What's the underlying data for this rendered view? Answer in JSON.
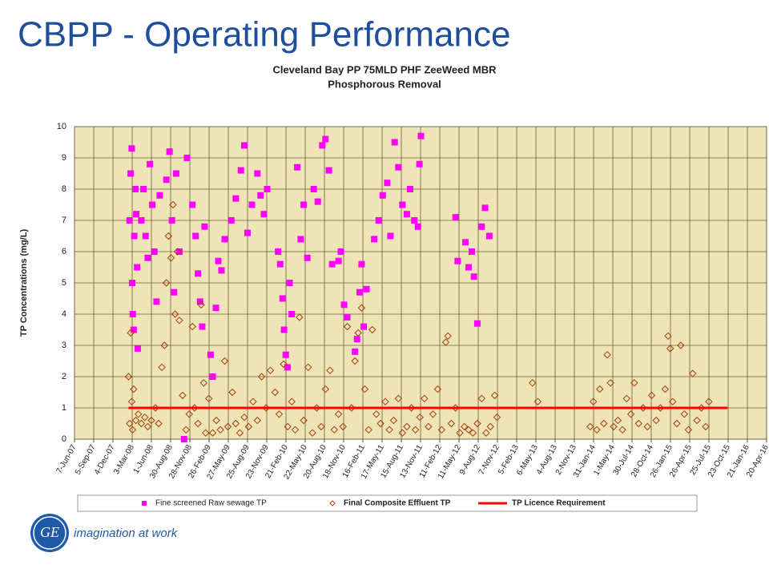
{
  "slide_title": "CBPP - Operating Performance",
  "logo": {
    "mark": "GE",
    "tagline": "imagination at work"
  },
  "chart_data": {
    "type": "scatter",
    "title": [
      "Cleveland Bay PP 75MLD PHF ZeeWeed MBR",
      "Phosphorous Removal"
    ],
    "y_label": "TP Concentrations (mg/L)",
    "ylim": [
      0,
      10
    ],
    "yticks": [
      0,
      1,
      2,
      3,
      4,
      5,
      6,
      7,
      8,
      9,
      10
    ],
    "xlim": [
      "2007-06-07",
      "2016-04-20"
    ],
    "xticks": [
      {
        "value": "2007-06-07",
        "label": "7-Jun-07"
      },
      {
        "value": "2007-09-05",
        "label": "5-Sep-07"
      },
      {
        "value": "2007-12-04",
        "label": "4-Dec-07"
      },
      {
        "value": "2008-03-03",
        "label": "3-Mar-08"
      },
      {
        "value": "2008-06-01",
        "label": "1-Jun-08"
      },
      {
        "value": "2008-08-30",
        "label": "30-Aug-08"
      },
      {
        "value": "2008-11-28",
        "label": "28-Nov-08"
      },
      {
        "value": "2009-02-26",
        "label": "26-Feb-09"
      },
      {
        "value": "2009-05-27",
        "label": "27-May-09"
      },
      {
        "value": "2009-08-25",
        "label": "25-Aug-09"
      },
      {
        "value": "2009-11-23",
        "label": "23-Nov-09"
      },
      {
        "value": "2010-02-21",
        "label": "21-Feb-10"
      },
      {
        "value": "2010-05-22",
        "label": "22-May-10"
      },
      {
        "value": "2010-08-20",
        "label": "20-Aug-10"
      },
      {
        "value": "2010-11-18",
        "label": "18-Nov-10"
      },
      {
        "value": "2011-02-16",
        "label": "16-Feb-11"
      },
      {
        "value": "2011-05-17",
        "label": "17-May-11"
      },
      {
        "value": "2011-08-15",
        "label": "15-Aug-11"
      },
      {
        "value": "2011-11-13",
        "label": "13-Nov-11"
      },
      {
        "value": "2012-02-11",
        "label": "11-Feb-12"
      },
      {
        "value": "2012-05-11",
        "label": "11-May-12"
      },
      {
        "value": "2012-08-09",
        "label": "9-Aug-12"
      },
      {
        "value": "2012-11-07",
        "label": "7-Nov-12"
      },
      {
        "value": "2013-02-05",
        "label": "5-Feb-13"
      },
      {
        "value": "2013-05-06",
        "label": "6-May-13"
      },
      {
        "value": "2013-08-04",
        "label": "4-Aug-13"
      },
      {
        "value": "2013-11-02",
        "label": "2-Nov-13"
      },
      {
        "value": "2014-01-31",
        "label": "31-Jan-14"
      },
      {
        "value": "2014-05-01",
        "label": "1-May-14"
      },
      {
        "value": "2014-07-30",
        "label": "30-Jul-14"
      },
      {
        "value": "2014-10-28",
        "label": "28-Oct-14"
      },
      {
        "value": "2015-01-26",
        "label": "26-Jan-15"
      },
      {
        "value": "2015-04-26",
        "label": "26-Apr-15"
      },
      {
        "value": "2015-07-25",
        "label": "25-Jul-15"
      },
      {
        "value": "2015-10-23",
        "label": "23-Oct-15"
      },
      {
        "value": "2016-01-21",
        "label": "21-Jan-16"
      },
      {
        "value": "2016-04-20",
        "label": "20-Apr-16"
      }
    ],
    "grid": true,
    "series": [
      {
        "name": "Fine screened Raw sewage TP",
        "color": "#ff00ff",
        "marker": "square",
        "x": [
          "2008-02-20",
          "2008-02-25",
          "2008-03-01",
          "2008-03-03",
          "2008-03-06",
          "2008-03-10",
          "2008-03-13",
          "2008-03-18",
          "2008-03-22",
          "2008-03-26",
          "2008-03-29",
          "2008-04-15",
          "2008-04-25",
          "2008-05-05",
          "2008-05-15",
          "2008-05-25",
          "2008-06-05",
          "2008-06-15",
          "2008-06-25",
          "2008-07-10",
          "2008-08-10",
          "2008-08-25",
          "2008-09-05",
          "2008-09-15",
          "2008-09-25",
          "2008-10-10",
          "2008-11-01",
          "2008-11-15",
          "2008-12-10",
          "2008-12-25",
          "2009-01-05",
          "2009-01-15",
          "2009-01-25",
          "2009-02-05",
          "2009-03-05",
          "2009-03-15",
          "2009-03-30",
          "2009-04-10",
          "2009-04-25",
          "2009-05-10",
          "2009-06-10",
          "2009-07-01",
          "2009-07-25",
          "2009-08-10",
          "2009-08-25",
          "2009-09-15",
          "2009-10-10",
          "2009-10-25",
          "2009-11-10",
          "2009-11-25",
          "2010-01-15",
          "2010-01-25",
          "2010-02-05",
          "2010-02-12",
          "2010-02-20",
          "2010-02-28",
          "2010-03-10",
          "2010-03-20",
          "2010-04-15",
          "2010-05-01",
          "2010-05-15",
          "2010-06-01",
          "2010-07-01",
          "2010-07-20",
          "2010-08-10",
          "2010-08-25",
          "2010-09-10",
          "2010-09-25",
          "2010-10-25",
          "2010-11-05",
          "2010-11-20",
          "2010-12-05",
          "2011-01-10",
          "2011-01-20",
          "2011-02-01",
          "2011-02-10",
          "2011-02-20",
          "2011-03-05",
          "2011-04-10",
          "2011-05-01",
          "2011-05-20",
          "2011-06-10",
          "2011-06-25",
          "2011-07-15",
          "2011-08-01",
          "2011-08-20",
          "2011-09-10",
          "2011-09-25",
          "2011-10-15",
          "2011-11-01",
          "2011-11-08",
          "2011-11-15",
          "2012-04-25",
          "2012-05-05",
          "2012-06-10",
          "2012-06-25",
          "2012-07-10",
          "2012-07-20",
          "2012-08-05",
          "2012-08-25",
          "2012-09-10",
          "2012-09-30"
        ],
        "values": [
          7.0,
          8.5,
          9.3,
          5.0,
          4.0,
          3.5,
          6.5,
          8.0,
          7.2,
          5.5,
          2.9,
          7.0,
          8.0,
          6.5,
          5.8,
          8.8,
          7.5,
          6.0,
          4.4,
          7.8,
          8.3,
          9.2,
          7.0,
          4.7,
          8.5,
          6.0,
          0,
          9.0,
          7.5,
          6.5,
          5.3,
          4.4,
          3.6,
          6.8,
          2.7,
          2.0,
          4.2,
          5.7,
          5.4,
          6.4,
          7.0,
          7.7,
          8.6,
          9.4,
          6.6,
          7.5,
          8.5,
          7.8,
          7.2,
          8.0,
          6.0,
          5.6,
          4.5,
          3.5,
          2.7,
          2.3,
          5.0,
          4.0,
          8.7,
          6.4,
          7.5,
          5.8,
          8.0,
          7.6,
          9.4,
          9.6,
          8.6,
          5.6,
          5.7,
          6.0,
          4.3,
          3.9,
          2.8,
          3.2,
          4.7,
          5.6,
          3.6,
          4.8,
          6.4,
          7.0,
          7.8,
          8.2,
          6.5,
          9.5,
          8.7,
          7.5,
          7.2,
          8.0,
          7.0,
          6.8,
          8.8,
          9.7,
          7.1,
          5.7,
          6.3,
          5.5,
          6.0,
          5.2,
          3.7,
          6.8,
          7.4,
          6.5
        ]
      },
      {
        "name": "Final Composite Effluent TP",
        "color": "#a33d0b",
        "marker": "diamond",
        "x": [
          "2008-02-15",
          "2008-02-20",
          "2008-02-25",
          "2008-03-01",
          "2008-03-05",
          "2008-03-10",
          "2008-03-20",
          "2008-04-01",
          "2008-04-15",
          "2008-05-01",
          "2008-05-15",
          "2008-06-01",
          "2008-06-20",
          "2008-07-05",
          "2008-07-20",
          "2008-08-01",
          "2008-08-10",
          "2008-08-20",
          "2008-09-01",
          "2008-09-10",
          "2008-09-20",
          "2008-10-01",
          "2008-10-10",
          "2008-10-25",
          "2008-11-10",
          "2008-11-25",
          "2008-12-10",
          "2008-12-20",
          "2009-01-05",
          "2009-01-20",
          "2009-02-01",
          "2009-02-10",
          "2009-02-25",
          "2009-03-15",
          "2009-04-01",
          "2009-04-20",
          "2009-05-10",
          "2009-05-25",
          "2009-06-15",
          "2009-07-01",
          "2009-07-20",
          "2009-08-10",
          "2009-08-30",
          "2009-09-20",
          "2009-10-10",
          "2009-10-30",
          "2009-11-20",
          "2009-12-10",
          "2010-01-01",
          "2010-01-20",
          "2010-02-10",
          "2010-03-01",
          "2010-03-20",
          "2010-04-05",
          "2010-04-25",
          "2010-05-15",
          "2010-06-05",
          "2010-06-25",
          "2010-07-15",
          "2010-08-05",
          "2010-08-25",
          "2010-09-15",
          "2010-10-05",
          "2010-10-25",
          "2010-11-15",
          "2010-12-05",
          "2010-12-25",
          "2011-01-10",
          "2011-01-25",
          "2011-02-10",
          "2011-02-25",
          "2011-03-15",
          "2011-04-01",
          "2011-04-20",
          "2011-05-10",
          "2011-06-01",
          "2011-06-20",
          "2011-07-10",
          "2011-08-01",
          "2011-08-20",
          "2011-09-10",
          "2011-10-01",
          "2011-10-20",
          "2011-11-10",
          "2011-12-01",
          "2011-12-20",
          "2012-01-10",
          "2012-02-01",
          "2012-02-20",
          "2012-03-10",
          "2012-03-20",
          "2012-04-05",
          "2012-04-25",
          "2012-05-15",
          "2012-06-05",
          "2012-06-25",
          "2012-07-15",
          "2012-08-05",
          "2012-08-25",
          "2012-09-15",
          "2012-10-05",
          "2012-10-25",
          "2012-11-05",
          "2013-04-20",
          "2013-05-15",
          "2014-01-15",
          "2014-01-30",
          "2014-02-15",
          "2014-03-01",
          "2014-03-20",
          "2014-04-05",
          "2014-04-20",
          "2014-05-05",
          "2014-05-25",
          "2014-06-15",
          "2014-07-05",
          "2014-07-25",
          "2014-08-10",
          "2014-08-30",
          "2014-09-20",
          "2014-10-10",
          "2014-10-30",
          "2014-11-20",
          "2014-12-10",
          "2015-01-01",
          "2015-01-15",
          "2015-01-25",
          "2015-02-05",
          "2015-02-25",
          "2015-03-15",
          "2015-04-01",
          "2015-04-20",
          "2015-05-10",
          "2015-05-30",
          "2015-06-20",
          "2015-07-10",
          "2015-07-25"
        ],
        "values": [
          2.0,
          0.5,
          3.4,
          1.2,
          0.3,
          1.6,
          0.6,
          0.8,
          0.5,
          0.7,
          0.4,
          0.6,
          1.0,
          0.5,
          2.3,
          3.0,
          5.0,
          6.5,
          5.8,
          7.5,
          4.0,
          6.0,
          3.8,
          1.4,
          0.3,
          0.8,
          3.6,
          1.0,
          0.5,
          4.3,
          1.8,
          0.2,
          1.3,
          0.2,
          0.6,
          0.3,
          2.5,
          0.4,
          1.5,
          0.5,
          0.2,
          0.7,
          0.4,
          1.2,
          0.6,
          2.0,
          1.0,
          2.2,
          1.5,
          0.8,
          2.4,
          0.4,
          1.2,
          0.3,
          3.9,
          0.6,
          2.3,
          0.2,
          1.0,
          0.4,
          1.6,
          2.2,
          0.3,
          0.8,
          0.4,
          3.6,
          1.0,
          2.5,
          3.4,
          4.2,
          1.6,
          0.3,
          3.5,
          0.8,
          0.5,
          1.2,
          0.3,
          0.6,
          1.3,
          0.2,
          0.4,
          1.0,
          0.3,
          0.7,
          1.3,
          0.4,
          0.8,
          1.6,
          0.3,
          3.1,
          3.3,
          0.5,
          1.0,
          0.2,
          0.4,
          0.3,
          0.2,
          0.5,
          1.3,
          0.2,
          0.4,
          1.4,
          0.7,
          1.8,
          1.2,
          0.4,
          1.2,
          0.3,
          1.6,
          0.5,
          2.7,
          1.8,
          0.4,
          0.6,
          0.3,
          1.3,
          0.8,
          1.8,
          0.5,
          1.0,
          0.4,
          1.4,
          0.6,
          1.0,
          1.6,
          3.3,
          2.9,
          1.2,
          0.5,
          3.0,
          0.8,
          0.3,
          2.1,
          0.6,
          1.0,
          0.4,
          1.2
        ]
      },
      {
        "name": "TP Licence Requirement",
        "color": "#ff0000",
        "marker": "line",
        "x": [
          "2008-02-15",
          "2015-10-20"
        ],
        "values": [
          1,
          1
        ]
      }
    ]
  }
}
